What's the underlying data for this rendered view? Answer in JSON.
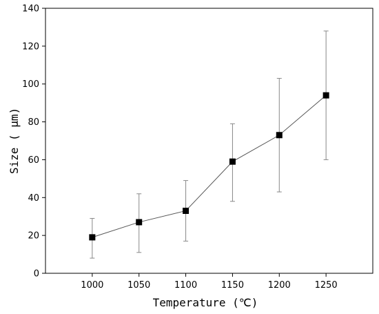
{
  "chart_data": {
    "type": "scatter",
    "title": "",
    "xlabel": "Temperature (℃)",
    "ylabel": "Size ( μm)",
    "xlim": [
      950,
      1300
    ],
    "ylim": [
      0,
      140
    ],
    "x_ticks": [
      "1000",
      "1050",
      "1100",
      "1150",
      "1200",
      "1250"
    ],
    "y_ticks": [
      "0",
      "20",
      "40",
      "60",
      "80",
      "100",
      "120",
      "140"
    ],
    "grid": false,
    "legend": "none",
    "series": [
      {
        "x": [
          1000,
          1050,
          1100,
          1150,
          1200,
          1250
        ],
        "y": [
          19,
          27,
          33,
          59,
          73,
          94
        ],
        "error_low": [
          8,
          11,
          17,
          38,
          43,
          60
        ],
        "error_high": [
          29,
          42,
          49,
          79,
          103,
          128
        ],
        "marker": "square",
        "line": true,
        "marker_color": "#000000",
        "line_color": "#555555"
      }
    ]
  }
}
